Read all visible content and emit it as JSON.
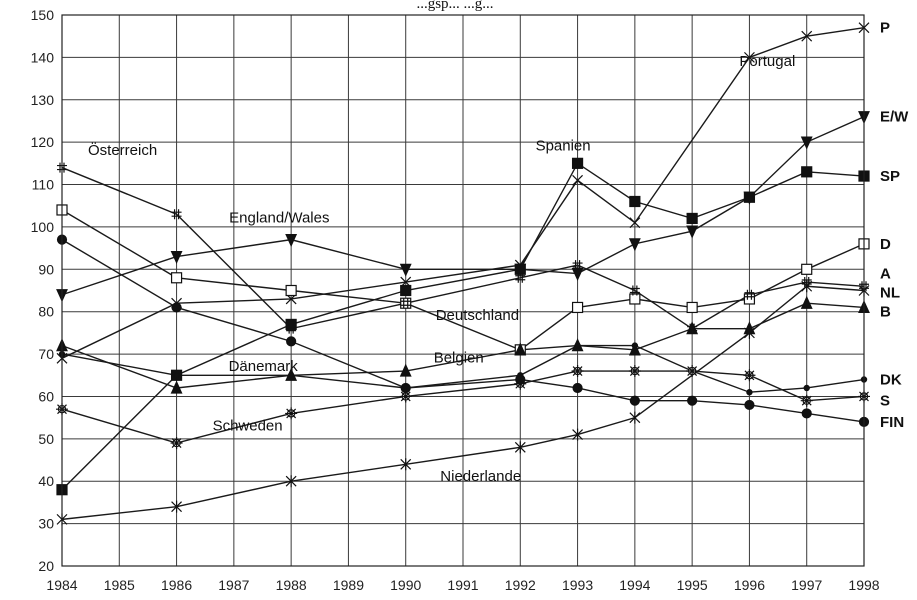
{
  "chart_data": {
    "type": "line",
    "title": "",
    "xlabel": "",
    "ylabel": "",
    "x_ticks": [
      "1984",
      "1985",
      "1986",
      "1987",
      "1988",
      "1989",
      "1990",
      "1991",
      "1992",
      "1993",
      "1994",
      "1995",
      "1996",
      "1997",
      "1998"
    ],
    "ylim": [
      20,
      150
    ],
    "y_ticks": [
      20,
      30,
      40,
      50,
      60,
      70,
      80,
      90,
      100,
      110,
      120,
      130,
      140,
      150
    ],
    "grid": true,
    "series": [
      {
        "name": "P",
        "marker": "x",
        "x": [
          "1984",
          "1986",
          "1988",
          "1990",
          "1992",
          "1993",
          "1994",
          "1996",
          "1997",
          "1998"
        ],
        "values": [
          69,
          82,
          83,
          87,
          91,
          111,
          101,
          140,
          145,
          147
        ]
      },
      {
        "name": "E/W",
        "marker": "triangle-down",
        "x": [
          "1984",
          "1986",
          "1988",
          "1990",
          "1992",
          "1993",
          "1994",
          "1995",
          "1996",
          "1997",
          "1998"
        ],
        "values": [
          84,
          93,
          97,
          90,
          90,
          89,
          96,
          99,
          107,
          120,
          126
        ]
      },
      {
        "name": "SP",
        "marker": "square-filled",
        "x": [
          "1984",
          "1986",
          "1988",
          "1990",
          "1992",
          "1993",
          "1994",
          "1995",
          "1996",
          "1997",
          "1998"
        ],
        "values": [
          38,
          65,
          77,
          85,
          90,
          115,
          106,
          102,
          107,
          113,
          112
        ]
      },
      {
        "name": "D",
        "marker": "square-open",
        "x": [
          "1984",
          "1986",
          "1988",
          "1990",
          "1992",
          "1993",
          "1994",
          "1995",
          "1996",
          "1997",
          "1998"
        ],
        "values": [
          104,
          88,
          85,
          82,
          71,
          81,
          83,
          81,
          83,
          90,
          96
        ]
      },
      {
        "name": "A",
        "marker": "hash",
        "x": [
          "1984",
          "1986",
          "1988",
          "1990",
          "1992",
          "1993",
          "1994",
          "1995",
          "1996",
          "1997",
          "1998"
        ],
        "values": [
          114,
          103,
          76,
          82,
          88,
          91,
          85,
          76,
          84,
          87,
          86
        ]
      },
      {
        "name": "NL",
        "marker": "asterisk",
        "x": [
          "1984",
          "1986",
          "1988",
          "1990",
          "1992",
          "1993",
          "1994",
          "1996",
          "1997",
          "1998"
        ],
        "values": [
          31,
          34,
          40,
          44,
          48,
          51,
          55,
          75,
          86,
          85
        ]
      },
      {
        "name": "B",
        "marker": "triangle-up",
        "x": [
          "1984",
          "1986",
          "1988",
          "1990",
          "1992",
          "1993",
          "1994",
          "1995",
          "1996",
          "1997",
          "1998"
        ],
        "values": [
          72,
          62,
          65,
          66,
          71,
          72,
          71,
          76,
          76,
          82,
          81
        ]
      },
      {
        "name": "DK",
        "marker": "dot-small",
        "x": [
          "1984",
          "1986",
          "1988",
          "1990",
          "1992",
          "1993",
          "1994",
          "1995",
          "1996",
          "1997",
          "1998"
        ],
        "values": [
          70,
          65,
          65,
          62,
          65,
          72,
          72,
          66,
          61,
          62,
          64
        ]
      },
      {
        "name": "S",
        "marker": "sun",
        "x": [
          "1984",
          "1986",
          "1988",
          "1990",
          "1992",
          "1993",
          "1994",
          "1995",
          "1996",
          "1997",
          "1998"
        ],
        "values": [
          57,
          49,
          56,
          60,
          63,
          66,
          66,
          66,
          65,
          59,
          60
        ]
      },
      {
        "name": "FIN",
        "marker": "dot",
        "x": [
          "1984",
          "1986",
          "1988",
          "1990",
          "1992",
          "1993",
          "1994",
          "1995",
          "1996",
          "1997",
          "1998"
        ],
        "values": [
          97,
          81,
          73,
          62,
          64,
          62,
          59,
          59,
          58,
          56,
          54
        ]
      }
    ],
    "annotations": [
      {
        "text": "Portugal",
        "series": "P"
      },
      {
        "text": "Spanien",
        "series": "SP"
      },
      {
        "text": "Österreich",
        "series": "A"
      },
      {
        "text": "England/Wales",
        "series": "E/W"
      },
      {
        "text": "Deutschland",
        "series": "D"
      },
      {
        "text": "Belgien",
        "series": "B"
      },
      {
        "text": "Dänemark",
        "series": "DK"
      },
      {
        "text": "Schweden",
        "series": "S"
      },
      {
        "text": "Niederlande",
        "series": "NL"
      }
    ],
    "partial_title": "...gsp... ...g..."
  }
}
